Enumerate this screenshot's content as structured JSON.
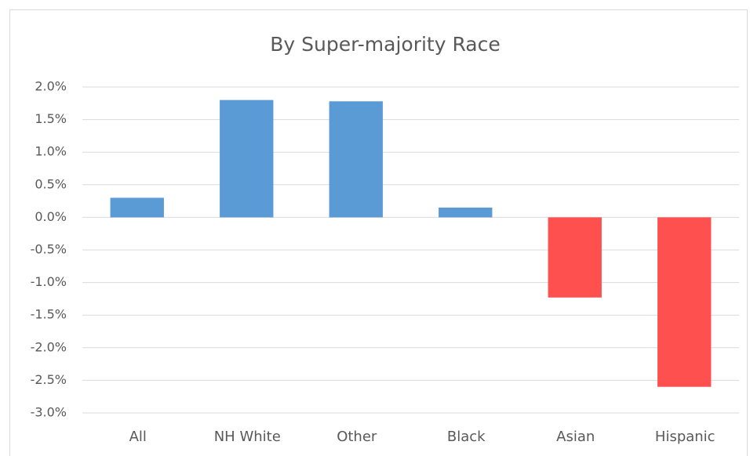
{
  "chart_data": {
    "type": "bar",
    "title": "By Super-majority Race",
    "categories": [
      "All",
      "NH White",
      "Other",
      "Black",
      "Asian",
      "Hispanic"
    ],
    "values": [
      0.3,
      1.8,
      1.78,
      0.15,
      -1.23,
      -2.6
    ],
    "colors": [
      "#5b9bd5",
      "#5b9bd5",
      "#5b9bd5",
      "#5b9bd5",
      "#ff5050",
      "#ff5050"
    ],
    "ylim": [
      -3,
      2
    ],
    "yticks": [
      {
        "value": 2,
        "label": "2.0%"
      },
      {
        "value": 1.5,
        "label": "1.5%"
      },
      {
        "value": 1,
        "label": "1.0%"
      },
      {
        "value": 0.5,
        "label": "0.5%"
      },
      {
        "value": 0,
        "label": "0.0%"
      },
      {
        "value": -0.5,
        "label": "-0.5%"
      },
      {
        "value": -1,
        "label": "-1.0%"
      },
      {
        "value": -1.5,
        "label": "-1.5%"
      },
      {
        "value": -2,
        "label": "-2.0%"
      },
      {
        "value": -2.5,
        "label": "-2.5%"
      },
      {
        "value": -3,
        "label": "-3.0%"
      }
    ],
    "grid": true
  }
}
